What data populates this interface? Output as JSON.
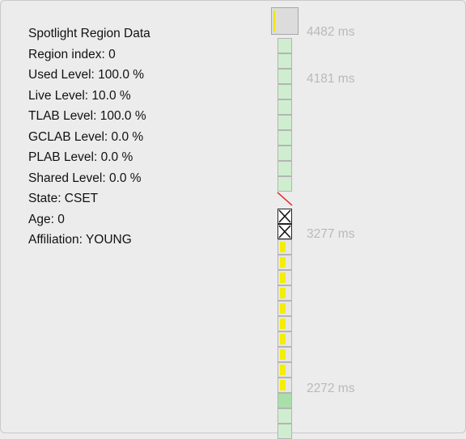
{
  "region_info": {
    "title": "Spotlight Region Data",
    "lines": [
      "Region index: 0",
      "Used Level: 100.0 %",
      "Live Level: 10.0 %",
      "TLAB Level: 100.0 %",
      "GCLAB Level: 0.0 %",
      "PLAB Level: 0.0 %",
      "Shared Level: 0.0 %",
      "State: CSET",
      "Age: 0",
      "Affiliation: YOUNG"
    ]
  },
  "timeline": {
    "timestamps": [
      "4482 ms",
      "4181 ms",
      "3277 ms",
      "2272 ms"
    ],
    "colors": {
      "young_green": "#cfeecf",
      "dark_green": "#a9e0a9",
      "tlab_yellow": "#f5ee00",
      "marker_red": "#e02020"
    }
  }
}
